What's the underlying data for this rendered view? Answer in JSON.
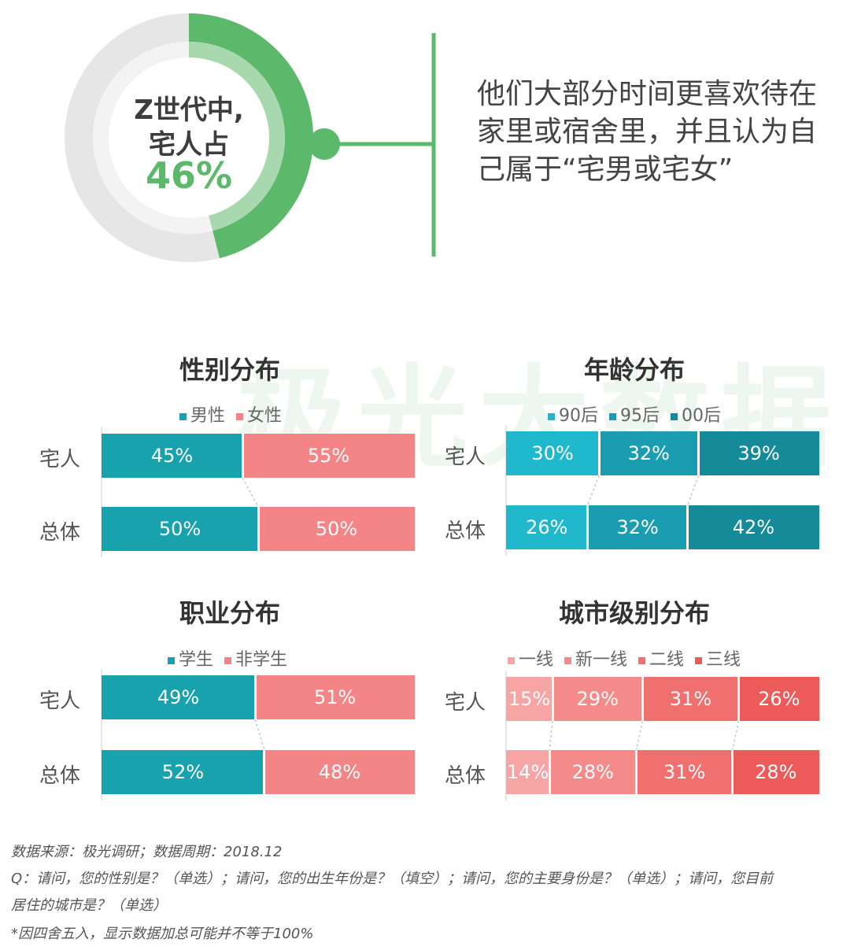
{
  "donut": {
    "line1": "Z世代中,",
    "line2": "宅人占",
    "value_label": "46%",
    "value": 46,
    "colors": {
      "fill": "#5cb86a",
      "inner_fill": "#a8d9ae",
      "track": "#e6e6e6",
      "inner_track": "#f3f3f3"
    }
  },
  "callout": {
    "text": "他们大部分时间更喜欢待在家里或宿舍里，并且认为自己属于“宅男或宅女”"
  },
  "watermark": "极光大数据",
  "chart_data": [
    {
      "type": "bar",
      "orientation": "horizontal",
      "stacked": "percent",
      "title": "性别分布",
      "categories": [
        "宅人",
        "总体"
      ],
      "series": [
        {
          "name": "男性",
          "color": "#17a2ad",
          "values": [
            45,
            50
          ],
          "labels": [
            "45%",
            "50%"
          ]
        },
        {
          "name": "女性",
          "color": "#f48587",
          "values": [
            55,
            50
          ],
          "labels": [
            "55%",
            "50%"
          ]
        }
      ]
    },
    {
      "type": "bar",
      "orientation": "horizontal",
      "stacked": "percent",
      "title": "年龄分布",
      "categories": [
        "宅人",
        "总体"
      ],
      "series": [
        {
          "name": "90后",
          "color": "#1fb8cc",
          "values": [
            30,
            26
          ],
          "labels": [
            "30%",
            "26%"
          ]
        },
        {
          "name": "95后",
          "color": "#1a9db0",
          "values": [
            32,
            32
          ],
          "labels": [
            "32%",
            "32%"
          ]
        },
        {
          "name": "00后",
          "color": "#158a98",
          "values": [
            39,
            42
          ],
          "labels": [
            "39%",
            "42%"
          ]
        }
      ]
    },
    {
      "type": "bar",
      "orientation": "horizontal",
      "stacked": "percent",
      "title": "职业分布",
      "categories": [
        "宅人",
        "总体"
      ],
      "series": [
        {
          "name": "学生",
          "color": "#17a2ad",
          "values": [
            49,
            52
          ],
          "labels": [
            "49%",
            "52%"
          ]
        },
        {
          "name": "非学生",
          "color": "#f48587",
          "values": [
            51,
            48
          ],
          "labels": [
            "51%",
            "48%"
          ]
        }
      ]
    },
    {
      "type": "bar",
      "orientation": "horizontal",
      "stacked": "percent",
      "title": "城市级别分布",
      "categories": [
        "宅人",
        "总体"
      ],
      "series": [
        {
          "name": "一线",
          "color": "#f7a4a4",
          "values": [
            15,
            14
          ],
          "labels": [
            "15%",
            "14%"
          ]
        },
        {
          "name": "新一线",
          "color": "#f48a8a",
          "values": [
            29,
            28
          ],
          "labels": [
            "29%",
            "28%"
          ]
        },
        {
          "name": "二线",
          "color": "#f07070",
          "values": [
            31,
            31
          ],
          "labels": [
            "31%",
            "31%"
          ]
        },
        {
          "name": "三线",
          "color": "#ec5a5a",
          "values": [
            26,
            28
          ],
          "labels": [
            "26%",
            "28%"
          ]
        }
      ]
    }
  ],
  "footnotes": {
    "source": "数据来源：极光调研；数据周期：2018.12",
    "question_1": "Q：请问，您的性别是？（单选）；请问，您的出生年份是？（填空）；请问，您的主要身份是？（单选）；请问，您目前",
    "question_2": "居住的城市是？（单选）",
    "rounding_note": "*因四舍五入，显示数据加总可能并不等于100%"
  }
}
